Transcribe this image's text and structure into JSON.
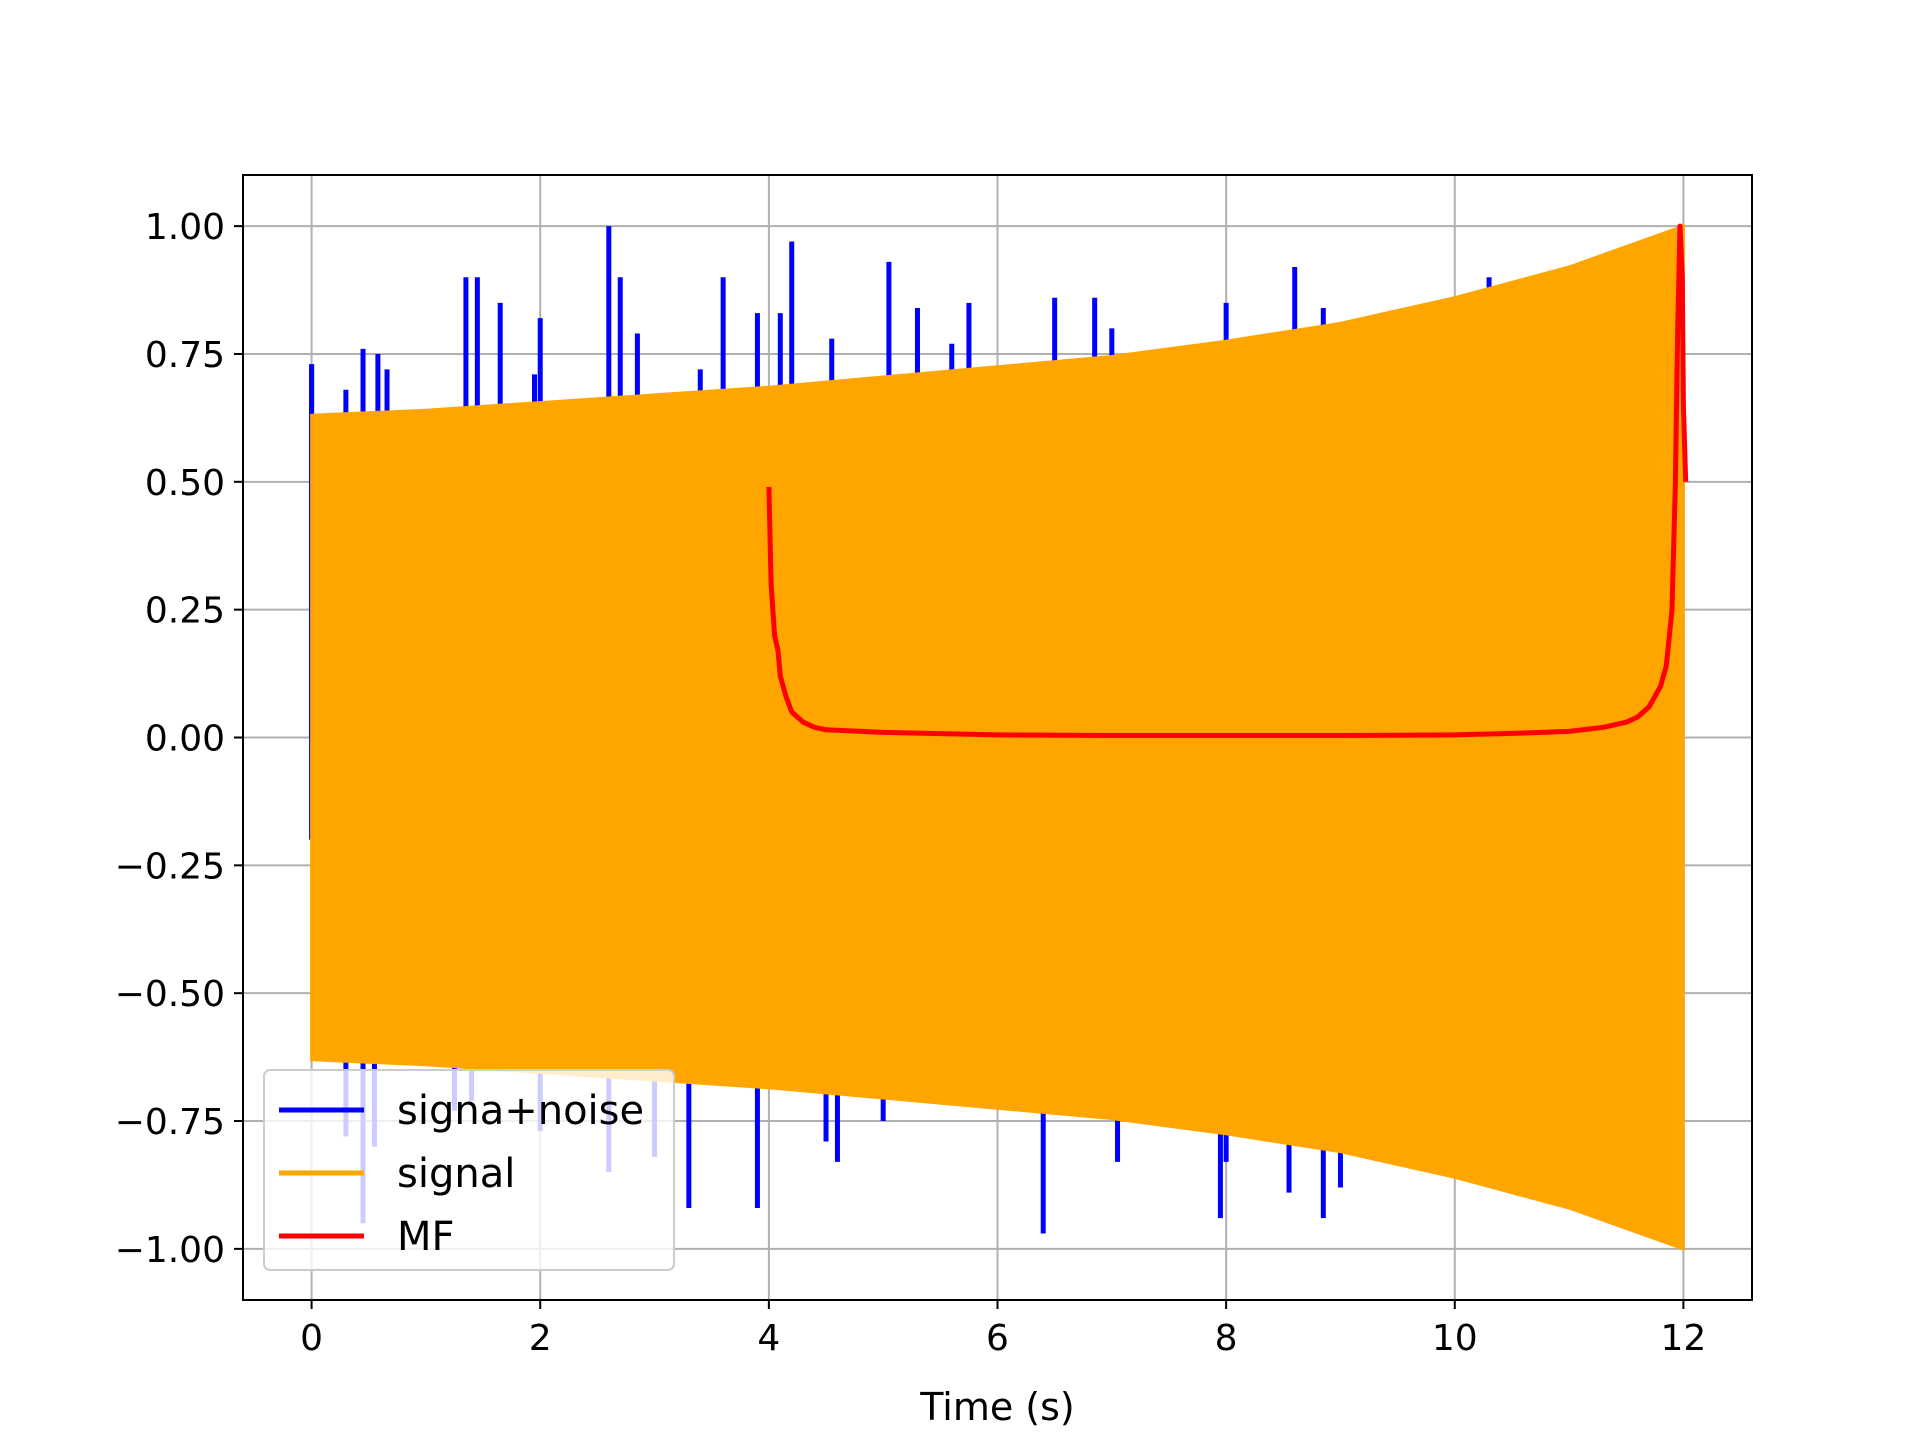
{
  "chart_data": {
    "type": "line",
    "title": "",
    "xlabel": "Time (s)",
    "ylabel": "",
    "xlim": [
      -0.6,
      12.6
    ],
    "ylim": [
      -1.1,
      1.1
    ],
    "xticks": [
      0,
      2,
      4,
      6,
      8,
      10,
      12
    ],
    "xtick_labels": [
      "0",
      "2",
      "4",
      "6",
      "8",
      "10",
      "12"
    ],
    "yticks": [
      1.0,
      0.75,
      0.5,
      0.25,
      0.0,
      -0.25,
      -0.5,
      -0.75,
      -1.0
    ],
    "ytick_labels": [
      "1.00",
      "0.75",
      "0.50",
      "0.25",
      "0.00",
      "−0.25",
      "−0.50",
      "−0.75",
      "−1.00"
    ],
    "grid": true,
    "legend_position": "lower-left",
    "series": [
      {
        "name": "signa+noise",
        "color": "#0000ff",
        "noise_spikes": [
          [
            0.0,
            0.73
          ],
          [
            0.3,
            0.68
          ],
          [
            0.45,
            0.76
          ],
          [
            0.58,
            0.75
          ],
          [
            0.66,
            0.72
          ],
          [
            1.35,
            0.9
          ],
          [
            1.45,
            0.9
          ],
          [
            1.65,
            0.85
          ],
          [
            1.95,
            0.71
          ],
          [
            2.0,
            0.82
          ],
          [
            2.6,
            1.0
          ],
          [
            2.7,
            0.9
          ],
          [
            2.85,
            0.79
          ],
          [
            3.4,
            0.72
          ],
          [
            3.6,
            0.9
          ],
          [
            3.9,
            0.83
          ],
          [
            4.1,
            0.83
          ],
          [
            4.2,
            0.97
          ],
          [
            4.55,
            0.78
          ],
          [
            5.05,
            0.93
          ],
          [
            5.3,
            0.84
          ],
          [
            5.6,
            0.77
          ],
          [
            5.75,
            0.85
          ],
          [
            6.5,
            0.86
          ],
          [
            6.85,
            0.86
          ],
          [
            7.0,
            0.8
          ],
          [
            7.25,
            0.75
          ],
          [
            8.0,
            0.85
          ],
          [
            8.6,
            0.92
          ],
          [
            8.85,
            0.84
          ],
          [
            10.3,
            0.9
          ],
          [
            0.3,
            -0.78
          ],
          [
            0.45,
            -0.95
          ],
          [
            0.55,
            -0.8
          ],
          [
            1.25,
            -0.73
          ],
          [
            1.4,
            -0.71
          ],
          [
            2.0,
            -0.77
          ],
          [
            2.6,
            -0.85
          ],
          [
            3.0,
            -0.82
          ],
          [
            3.3,
            -0.92
          ],
          [
            3.9,
            -0.92
          ],
          [
            4.5,
            -0.79
          ],
          [
            4.6,
            -0.83
          ],
          [
            5.0,
            -0.75
          ],
          [
            6.4,
            -0.97
          ],
          [
            7.05,
            -0.83
          ],
          [
            7.95,
            -0.94
          ],
          [
            8.0,
            -0.83
          ],
          [
            8.55,
            -0.89
          ],
          [
            8.85,
            -0.94
          ],
          [
            9.0,
            -0.88
          ]
        ]
      },
      {
        "name": "signal",
        "color": "#ffa500",
        "envelope": [
          [
            0,
            0.63
          ],
          [
            1,
            0.64
          ],
          [
            2,
            0.655
          ],
          [
            3,
            0.67
          ],
          [
            4,
            0.685
          ],
          [
            5,
            0.705
          ],
          [
            6,
            0.725
          ],
          [
            7,
            0.745
          ],
          [
            8,
            0.775
          ],
          [
            9,
            0.81
          ],
          [
            10,
            0.86
          ],
          [
            11,
            0.92
          ],
          [
            12,
            1.0
          ]
        ]
      },
      {
        "name": "MF",
        "color": "#ff0000",
        "x": [
          4.0,
          4.02,
          4.05,
          4.08,
          4.1,
          4.15,
          4.2,
          4.3,
          4.4,
          4.5,
          5.0,
          6.0,
          7.0,
          8.0,
          9.0,
          10.0,
          10.5,
          11.0,
          11.3,
          11.5,
          11.6,
          11.7,
          11.8,
          11.85,
          11.9,
          11.93,
          11.95,
          11.97,
          11.99,
          12.0,
          12.02
        ],
        "y": [
          0.49,
          0.3,
          0.2,
          0.17,
          0.12,
          0.08,
          0.05,
          0.03,
          0.02,
          0.015,
          0.01,
          0.005,
          0.004,
          0.004,
          0.004,
          0.005,
          0.008,
          0.012,
          0.02,
          0.03,
          0.04,
          0.06,
          0.1,
          0.14,
          0.25,
          0.5,
          0.8,
          1.0,
          0.9,
          0.65,
          0.5
        ]
      }
    ]
  }
}
